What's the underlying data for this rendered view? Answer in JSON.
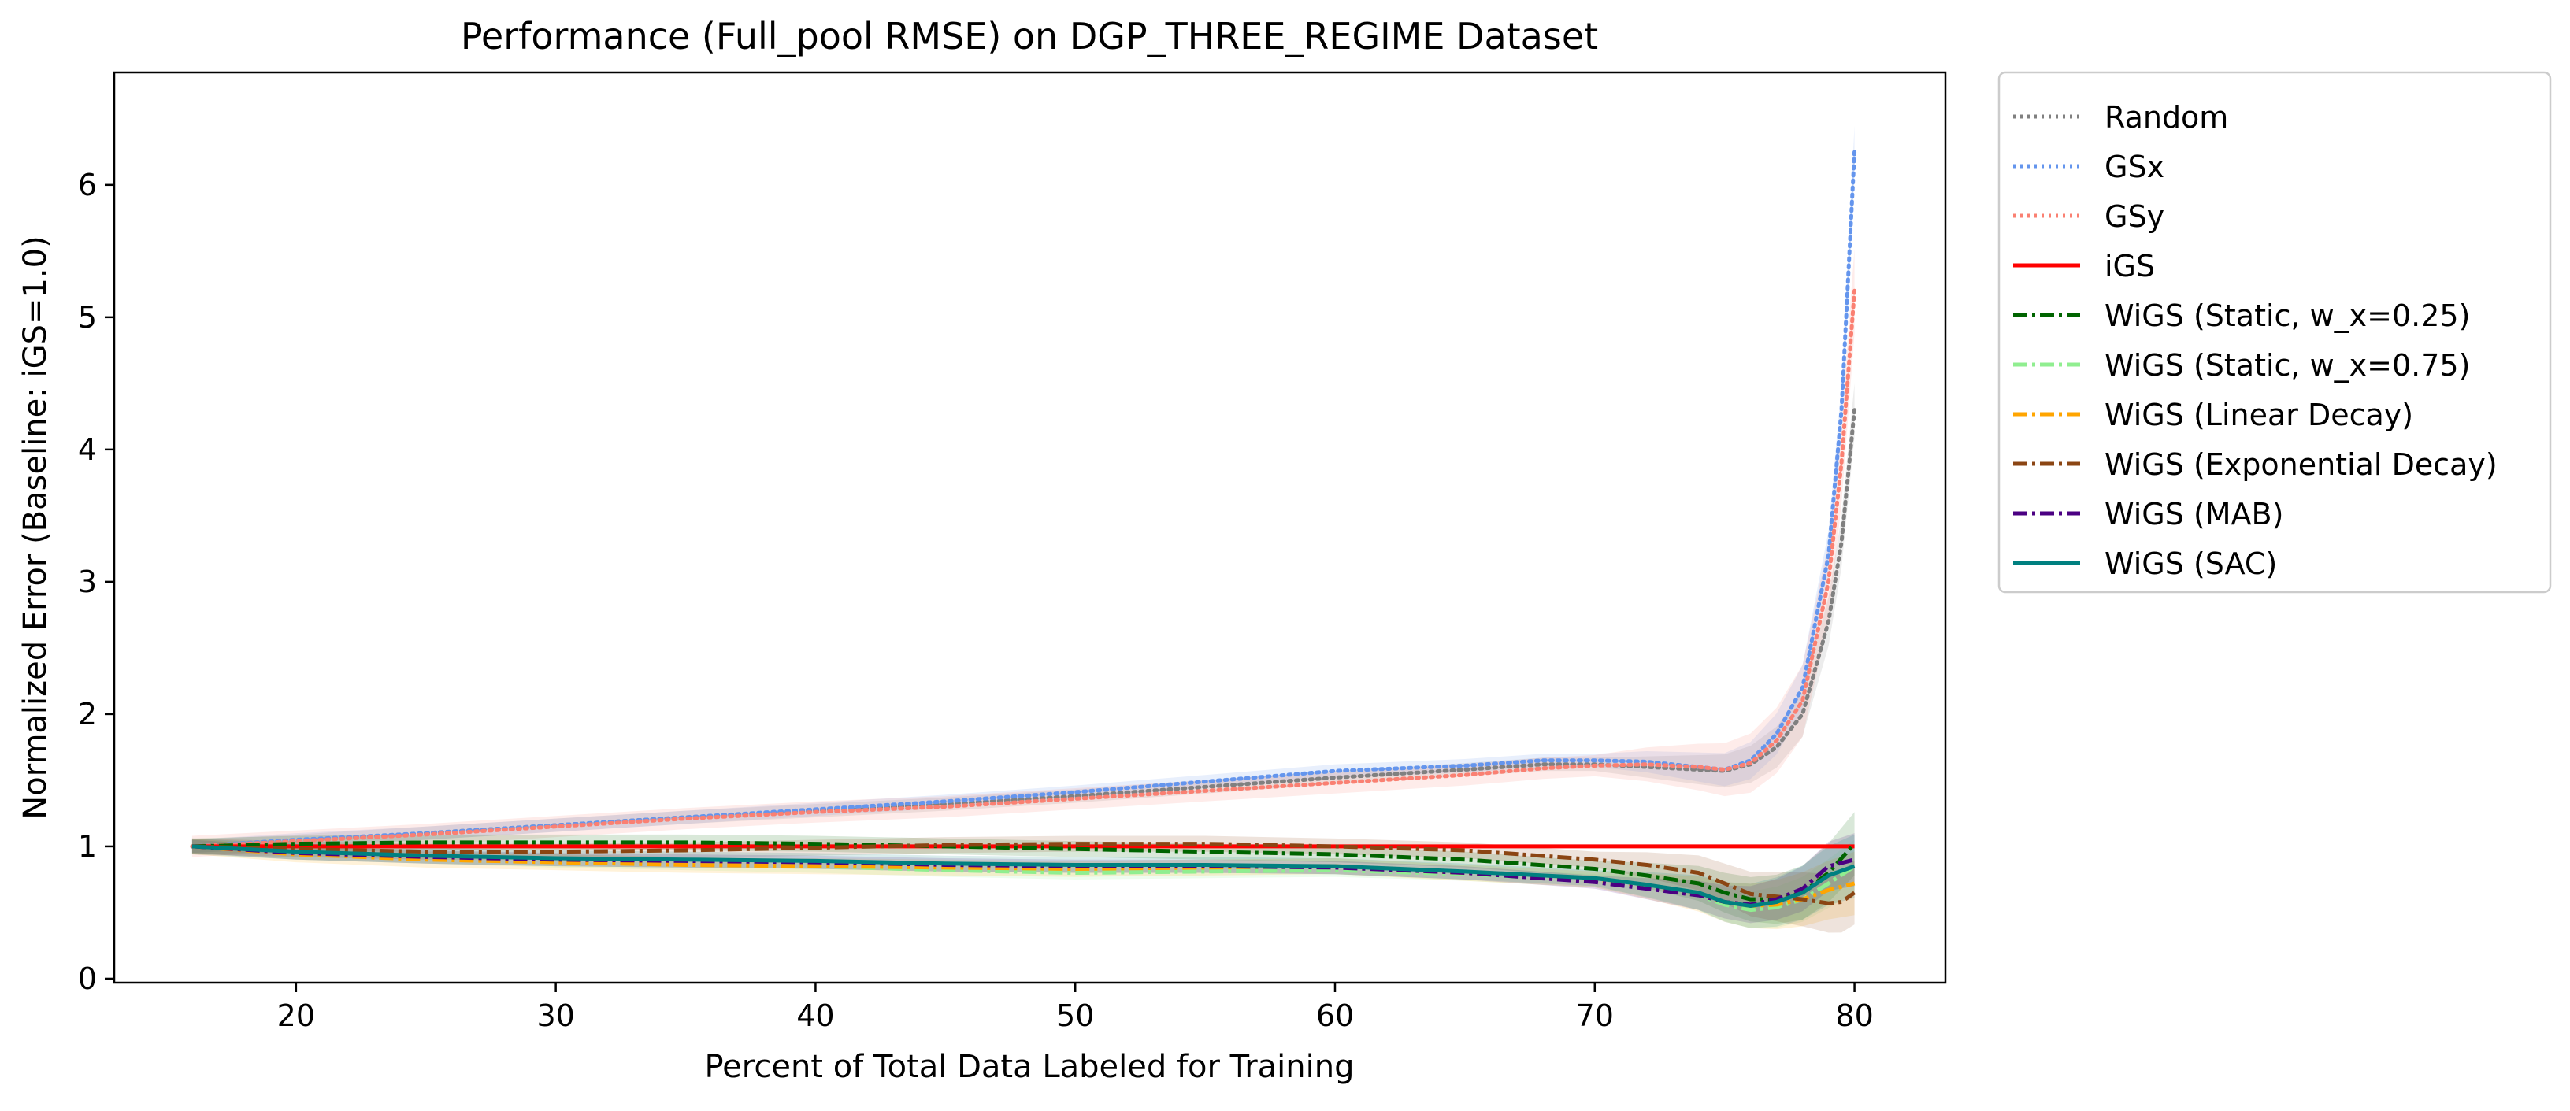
{
  "chart_data": {
    "type": "line",
    "title": "Performance (Full_pool RMSE) on DGP_THREE_REGIME Dataset",
    "xlabel": "Percent of Total Data Labeled for Training",
    "ylabel": "Normalized Error (Baseline: iGS=1.0)",
    "xlim": [
      13,
      83.5
    ],
    "ylim": [
      -0.03,
      6.85
    ],
    "xticks": [
      20,
      30,
      40,
      50,
      60,
      70,
      80
    ],
    "yticks": [
      0,
      1,
      2,
      3,
      4,
      5,
      6
    ],
    "xtick_labels": [
      "20",
      "30",
      "40",
      "50",
      "60",
      "70",
      "80"
    ],
    "ytick_labels": [
      "0",
      "1",
      "2",
      "3",
      "4",
      "5",
      "6"
    ],
    "grid": false,
    "legend_position": "outside-top-right",
    "series": [
      {
        "name": "Random",
        "color": "#808080",
        "dash": "dotted",
        "x": [
          16,
          20,
          25,
          30,
          35,
          40,
          45,
          50,
          55,
          60,
          65,
          68,
          70,
          72,
          74,
          75,
          76,
          77,
          78,
          79,
          79.5,
          80
        ],
        "y": [
          1.0,
          1.04,
          1.1,
          1.16,
          1.22,
          1.27,
          1.32,
          1.38,
          1.45,
          1.52,
          1.58,
          1.62,
          1.62,
          1.6,
          1.58,
          1.57,
          1.62,
          1.75,
          2.0,
          2.7,
          3.3,
          4.3
        ],
        "band": 0.05
      },
      {
        "name": "GSx",
        "color": "#6495ed",
        "dash": "dotted",
        "x": [
          16,
          20,
          25,
          30,
          35,
          40,
          45,
          50,
          55,
          60,
          65,
          68,
          70,
          72,
          74,
          75,
          76,
          77,
          78,
          79,
          79.5,
          80
        ],
        "y": [
          1.0,
          1.05,
          1.1,
          1.16,
          1.22,
          1.28,
          1.34,
          1.41,
          1.49,
          1.57,
          1.61,
          1.65,
          1.65,
          1.64,
          1.6,
          1.58,
          1.65,
          1.85,
          2.2,
          3.2,
          4.3,
          6.25
        ],
        "band": 0.05
      },
      {
        "name": "GSy",
        "color": "#fa8072",
        "dash": "dotted",
        "x": [
          16,
          20,
          25,
          30,
          35,
          40,
          45,
          50,
          55,
          60,
          65,
          68,
          70,
          72,
          74,
          75,
          76,
          77,
          78,
          79,
          79.5,
          80
        ],
        "y": [
          1.0,
          1.04,
          1.09,
          1.15,
          1.21,
          1.26,
          1.3,
          1.36,
          1.42,
          1.48,
          1.54,
          1.59,
          1.61,
          1.62,
          1.6,
          1.58,
          1.63,
          1.8,
          2.1,
          3.0,
          3.9,
          5.2
        ],
        "band": 0.08
      },
      {
        "name": "iGS",
        "color": "#ff0000",
        "dash": "solid",
        "x": [
          16,
          80
        ],
        "y": [
          1.0,
          1.0
        ],
        "band": 0.0
      },
      {
        "name": "WiGS (Static, w_x=0.25)",
        "color": "#006400",
        "dash": "dashdot",
        "x": [
          16,
          20,
          25,
          30,
          35,
          40,
          45,
          50,
          55,
          60,
          65,
          70,
          72,
          74,
          75,
          76,
          77,
          78,
          79,
          80
        ],
        "y": [
          1.0,
          1.02,
          1.03,
          1.03,
          1.03,
          1.02,
          1.0,
          0.98,
          0.96,
          0.94,
          0.9,
          0.83,
          0.78,
          0.72,
          0.65,
          0.6,
          0.6,
          0.65,
          0.8,
          1.02
        ],
        "band": 0.06
      },
      {
        "name": "WiGS (Static, w_x=0.75)",
        "color": "#90ee90",
        "dash": "dashdot",
        "x": [
          16,
          20,
          25,
          30,
          35,
          40,
          45,
          50,
          55,
          60,
          65,
          70,
          72,
          74,
          75,
          76,
          77,
          78,
          79,
          80
        ],
        "y": [
          1.0,
          0.95,
          0.92,
          0.89,
          0.87,
          0.85,
          0.82,
          0.8,
          0.81,
          0.82,
          0.79,
          0.74,
          0.7,
          0.63,
          0.56,
          0.52,
          0.54,
          0.6,
          0.72,
          0.85
        ],
        "band": 0.05
      },
      {
        "name": "WiGS (Linear Decay)",
        "color": "#ffa500",
        "dash": "dashdot",
        "x": [
          16,
          20,
          25,
          30,
          35,
          40,
          45,
          50,
          55,
          60,
          65,
          70,
          72,
          74,
          75,
          76,
          77,
          78,
          79,
          80
        ],
        "y": [
          1.0,
          0.94,
          0.9,
          0.88,
          0.86,
          0.85,
          0.84,
          0.83,
          0.84,
          0.85,
          0.8,
          0.75,
          0.7,
          0.64,
          0.58,
          0.55,
          0.56,
          0.6,
          0.67,
          0.72
        ],
        "band": 0.06
      },
      {
        "name": "WiGS (Exponential Decay)",
        "color": "#8b4513",
        "dash": "dashdot",
        "x": [
          16,
          20,
          25,
          30,
          35,
          40,
          45,
          50,
          55,
          60,
          65,
          70,
          72,
          74,
          75,
          76,
          77,
          78,
          79,
          79.5,
          80
        ],
        "y": [
          1.0,
          0.98,
          0.96,
          0.96,
          0.97,
          0.99,
          1.01,
          1.02,
          1.02,
          1.0,
          0.97,
          0.9,
          0.86,
          0.8,
          0.72,
          0.64,
          0.62,
          0.6,
          0.57,
          0.58,
          0.65
        ],
        "band": 0.06
      },
      {
        "name": "WiGS (MAB)",
        "color": "#4b0082",
        "dash": "dashdot",
        "x": [
          16,
          20,
          25,
          30,
          35,
          40,
          45,
          50,
          55,
          60,
          65,
          70,
          72,
          74,
          75,
          76,
          77,
          78,
          79,
          80
        ],
        "y": [
          1.0,
          0.95,
          0.92,
          0.9,
          0.89,
          0.88,
          0.86,
          0.85,
          0.85,
          0.84,
          0.8,
          0.73,
          0.68,
          0.63,
          0.58,
          0.56,
          0.6,
          0.68,
          0.85,
          0.9
        ],
        "band": 0.05
      },
      {
        "name": "WiGS (SAC)",
        "color": "#008080",
        "dash": "solid",
        "x": [
          16,
          20,
          25,
          30,
          35,
          40,
          45,
          50,
          55,
          60,
          65,
          70,
          72,
          74,
          75,
          76,
          77,
          78,
          79,
          80
        ],
        "y": [
          1.0,
          0.96,
          0.93,
          0.91,
          0.9,
          0.89,
          0.87,
          0.86,
          0.86,
          0.85,
          0.81,
          0.76,
          0.71,
          0.65,
          0.58,
          0.55,
          0.58,
          0.65,
          0.78,
          0.85
        ],
        "band": 0.06
      }
    ]
  }
}
